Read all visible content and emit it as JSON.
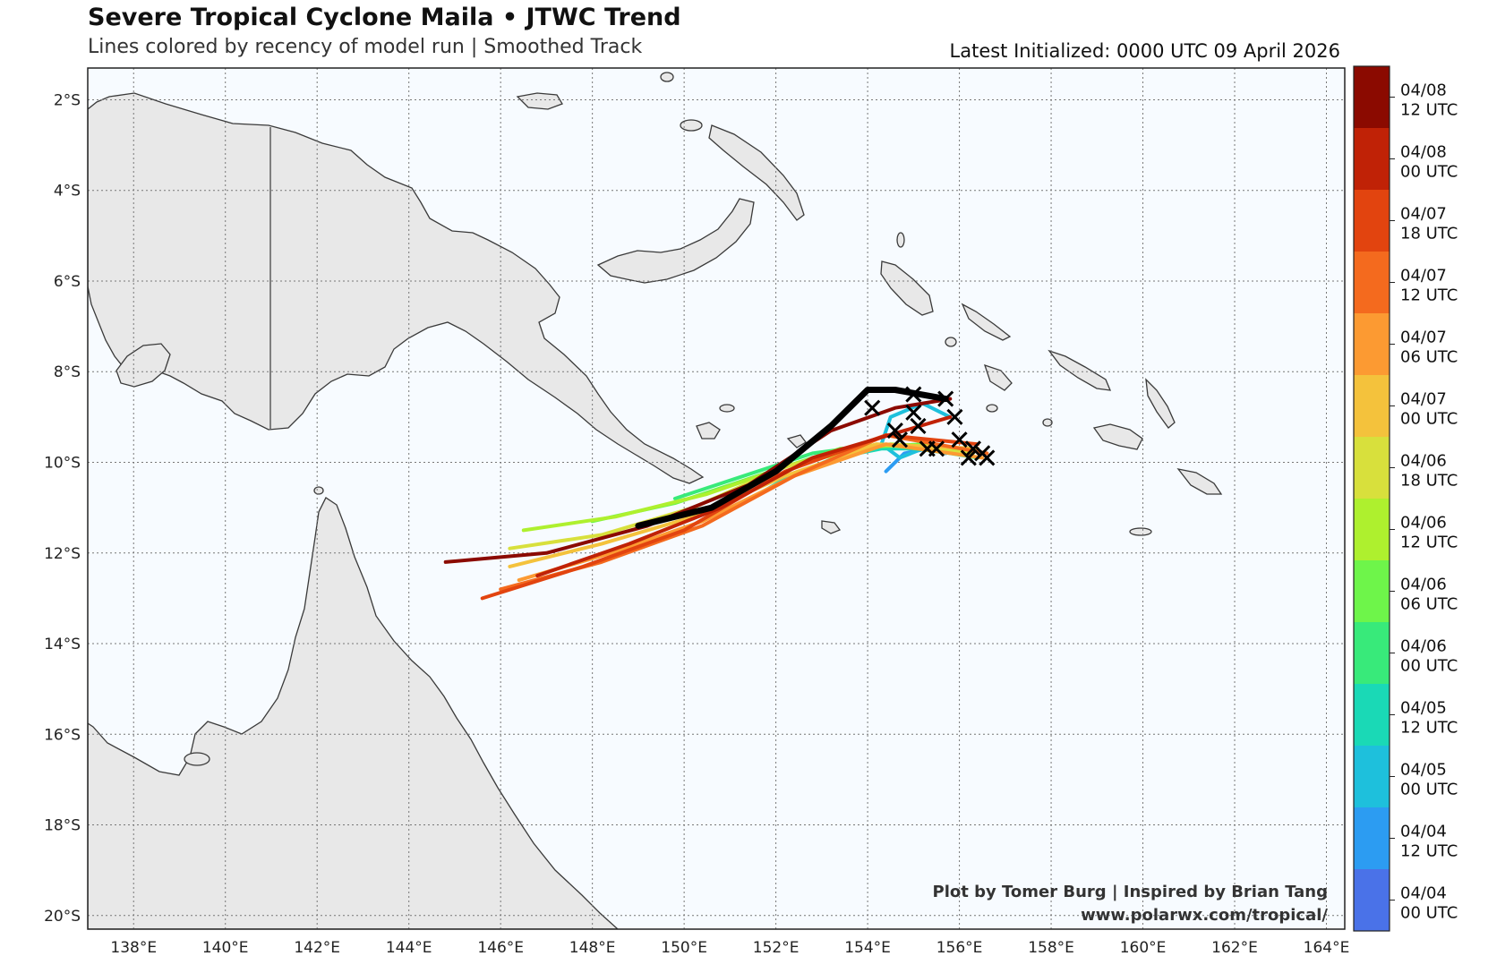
{
  "header": {
    "title": "Severe Tropical Cyclone Maila • JTWC Trend",
    "subtitle": "Lines colored by recency of model run | Smoothed Track",
    "latest": "Latest Initialized: 0000 UTC 09 April 2026"
  },
  "map": {
    "lat_labels": [
      "2°S",
      "4°S",
      "6°S",
      "8°S",
      "10°S",
      "12°S",
      "14°S",
      "16°S",
      "18°S",
      "20°S"
    ],
    "lon_labels": [
      "138°E",
      "140°E",
      "142°E",
      "144°E",
      "146°E",
      "148°E",
      "150°E",
      "152°E",
      "154°E",
      "156°E",
      "158°E",
      "160°E",
      "162°E",
      "164°E"
    ],
    "ocean_color": "#f7fbff",
    "land_color": "#e8e8e8",
    "grid": "dotted"
  },
  "credits": {
    "line1": "Plot by Tomer Burg | Inspired by Brian Tang",
    "line2": "www.polarwx.com/tropical/"
  },
  "colorbar": {
    "entries": [
      {
        "date": "04/08",
        "time": "12 UTC",
        "color": "#8b0a00"
      },
      {
        "date": "04/08",
        "time": "00 UTC",
        "color": "#c02206"
      },
      {
        "date": "04/07",
        "time": "18 UTC",
        "color": "#e2440f"
      },
      {
        "date": "04/07",
        "time": "12 UTC",
        "color": "#f46a1e"
      },
      {
        "date": "04/07",
        "time": "06 UTC",
        "color": "#fc9a32"
      },
      {
        "date": "04/07",
        "time": "00 UTC",
        "color": "#f4c23c"
      },
      {
        "date": "04/06",
        "time": "18 UTC",
        "color": "#d8e03c"
      },
      {
        "date": "04/06",
        "time": "12 UTC",
        "color": "#aef02e"
      },
      {
        "date": "04/06",
        "time": "06 UTC",
        "color": "#6ef54a"
      },
      {
        "date": "04/06",
        "time": "00 UTC",
        "color": "#38ea7a"
      },
      {
        "date": "04/05",
        "time": "12 UTC",
        "color": "#1ad9b6"
      },
      {
        "date": "04/05",
        "time": "00 UTC",
        "color": "#1ec0dc"
      },
      {
        "date": "04/04",
        "time": "12 UTC",
        "color": "#2c9cf2"
      },
      {
        "date": "04/04",
        "time": "00 UTC",
        "color": "#4a72e8"
      }
    ]
  },
  "tracks": [
    {
      "run": "04/04 12 UTC",
      "color": "#2c9cf2",
      "points": [
        [
          154.4,
          -10.2
        ],
        [
          154.8,
          -9.8
        ],
        [
          155.3,
          -9.7
        ],
        [
          155.7,
          -9.8
        ]
      ]
    },
    {
      "run": "04/05 00 UTC",
      "color": "#1ec0dc",
      "points": [
        [
          155.2,
          -9.7
        ],
        [
          154.7,
          -9.9
        ],
        [
          154.3,
          -9.6
        ],
        [
          154.5,
          -9.0
        ],
        [
          155.2,
          -8.7
        ],
        [
          155.8,
          -9.0
        ]
      ]
    },
    {
      "run": "04/05 12 UTC",
      "color": "#1ad9b6",
      "points": [
        [
          151.3,
          -10.9
        ],
        [
          152.3,
          -10.3
        ],
        [
          153.3,
          -9.9
        ],
        [
          154.3,
          -9.7
        ],
        [
          155.4,
          -9.7
        ]
      ]
    },
    {
      "run": "04/06 00 UTC",
      "color": "#38ea7a",
      "points": [
        [
          149.8,
          -10.8
        ],
        [
          151.3,
          -10.3
        ],
        [
          152.8,
          -9.8
        ],
        [
          154.3,
          -9.6
        ],
        [
          155.8,
          -9.8
        ],
        [
          156.4,
          -9.9
        ]
      ]
    },
    {
      "run": "04/06 06 UTC",
      "color": "#6ef54a",
      "points": [
        [
          148.0,
          -11.3
        ],
        [
          149.8,
          -10.9
        ],
        [
          151.6,
          -10.3
        ],
        [
          153.4,
          -9.7
        ],
        [
          155.2,
          -9.6
        ],
        [
          156.2,
          -9.8
        ]
      ]
    },
    {
      "run": "04/06 12 UTC",
      "color": "#aef02e",
      "points": [
        [
          146.5,
          -11.5
        ],
        [
          148.5,
          -11.2
        ],
        [
          150.5,
          -10.7
        ],
        [
          152.5,
          -10.0
        ],
        [
          154.5,
          -9.6
        ],
        [
          156.3,
          -9.7
        ]
      ]
    },
    {
      "run": "04/06 18 UTC",
      "color": "#d8e03c",
      "points": [
        [
          146.2,
          -11.9
        ],
        [
          148.2,
          -11.6
        ],
        [
          150.2,
          -11.0
        ],
        [
          152.2,
          -10.1
        ],
        [
          154.2,
          -9.6
        ],
        [
          156.3,
          -9.8
        ]
      ]
    },
    {
      "run": "04/07 00 UTC",
      "color": "#f4c23c",
      "points": [
        [
          146.2,
          -12.3
        ],
        [
          148.2,
          -11.8
        ],
        [
          150.2,
          -11.2
        ],
        [
          152.2,
          -10.3
        ],
        [
          154.2,
          -9.6
        ],
        [
          156.4,
          -9.7
        ]
      ]
    },
    {
      "run": "04/07 06 UTC",
      "color": "#fc9a32",
      "points": [
        [
          146.4,
          -12.6
        ],
        [
          148.4,
          -12.0
        ],
        [
          150.4,
          -11.3
        ],
        [
          152.4,
          -10.3
        ],
        [
          154.4,
          -9.6
        ],
        [
          156.5,
          -9.9
        ]
      ]
    },
    {
      "run": "04/07 12 UTC",
      "color": "#f46a1e",
      "points": [
        [
          146.0,
          -12.8
        ],
        [
          148.2,
          -12.2
        ],
        [
          150.4,
          -11.4
        ],
        [
          152.4,
          -10.3
        ],
        [
          154.4,
          -9.4
        ],
        [
          156.6,
          -9.8
        ]
      ]
    },
    {
      "run": "04/07 18 UTC",
      "color": "#e2440f",
      "points": [
        [
          145.6,
          -13.0
        ],
        [
          147.8,
          -12.3
        ],
        [
          150.0,
          -11.5
        ],
        [
          152.2,
          -10.2
        ],
        [
          154.4,
          -9.4
        ],
        [
          156.4,
          -9.6
        ]
      ]
    },
    {
      "run": "04/08 00 UTC",
      "color": "#c02206",
      "points": [
        [
          146.8,
          -12.5
        ],
        [
          148.8,
          -11.8
        ],
        [
          150.8,
          -11.0
        ],
        [
          152.8,
          -9.9
        ],
        [
          154.8,
          -9.3
        ],
        [
          155.8,
          -9.0
        ]
      ]
    },
    {
      "run": "04/08 12 UTC",
      "color": "#8b0a00",
      "points": [
        [
          144.8,
          -12.2
        ],
        [
          147.0,
          -12.0
        ],
        [
          149.2,
          -11.4
        ],
        [
          151.4,
          -10.5
        ],
        [
          153.2,
          -9.3
        ],
        [
          154.6,
          -8.8
        ],
        [
          155.8,
          -8.6
        ]
      ]
    }
  ],
  "current_track": {
    "color": "#000000",
    "points": [
      [
        149.0,
        -11.4
      ],
      [
        150.6,
        -11.0
      ],
      [
        152.0,
        -10.2
      ],
      [
        153.2,
        -9.2
      ],
      [
        154.0,
        -8.4
      ],
      [
        154.6,
        -8.4
      ],
      [
        155.7,
        -8.6
      ]
    ]
  },
  "final_positions": [
    [
      155.0,
      -8.5
    ],
    [
      155.7,
      -8.6
    ],
    [
      155.9,
      -9.0
    ],
    [
      154.1,
      -8.8
    ],
    [
      155.0,
      -8.9
    ],
    [
      155.1,
      -9.2
    ],
    [
      154.6,
      -9.3
    ],
    [
      154.7,
      -9.5
    ],
    [
      155.3,
      -9.7
    ],
    [
      155.5,
      -9.7
    ],
    [
      156.0,
      -9.5
    ],
    [
      156.3,
      -9.7
    ],
    [
      156.2,
      -9.9
    ],
    [
      156.5,
      -9.8
    ],
    [
      156.6,
      -9.9
    ]
  ]
}
